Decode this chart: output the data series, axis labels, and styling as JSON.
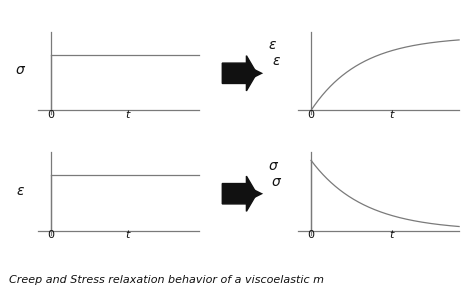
{
  "bg_color": "#ffffff",
  "line_color": "#7a7a7a",
  "arrow_color": "#111111",
  "text_color": "#111111",
  "figsize": [
    4.74,
    2.88
  ],
  "dpi": 100,
  "caption": "Creep and Stress relaxation behavior of a viscoelastic m",
  "caption_fontsize": 8.0,
  "label_fontsize": 10,
  "tick_fontsize": 8
}
